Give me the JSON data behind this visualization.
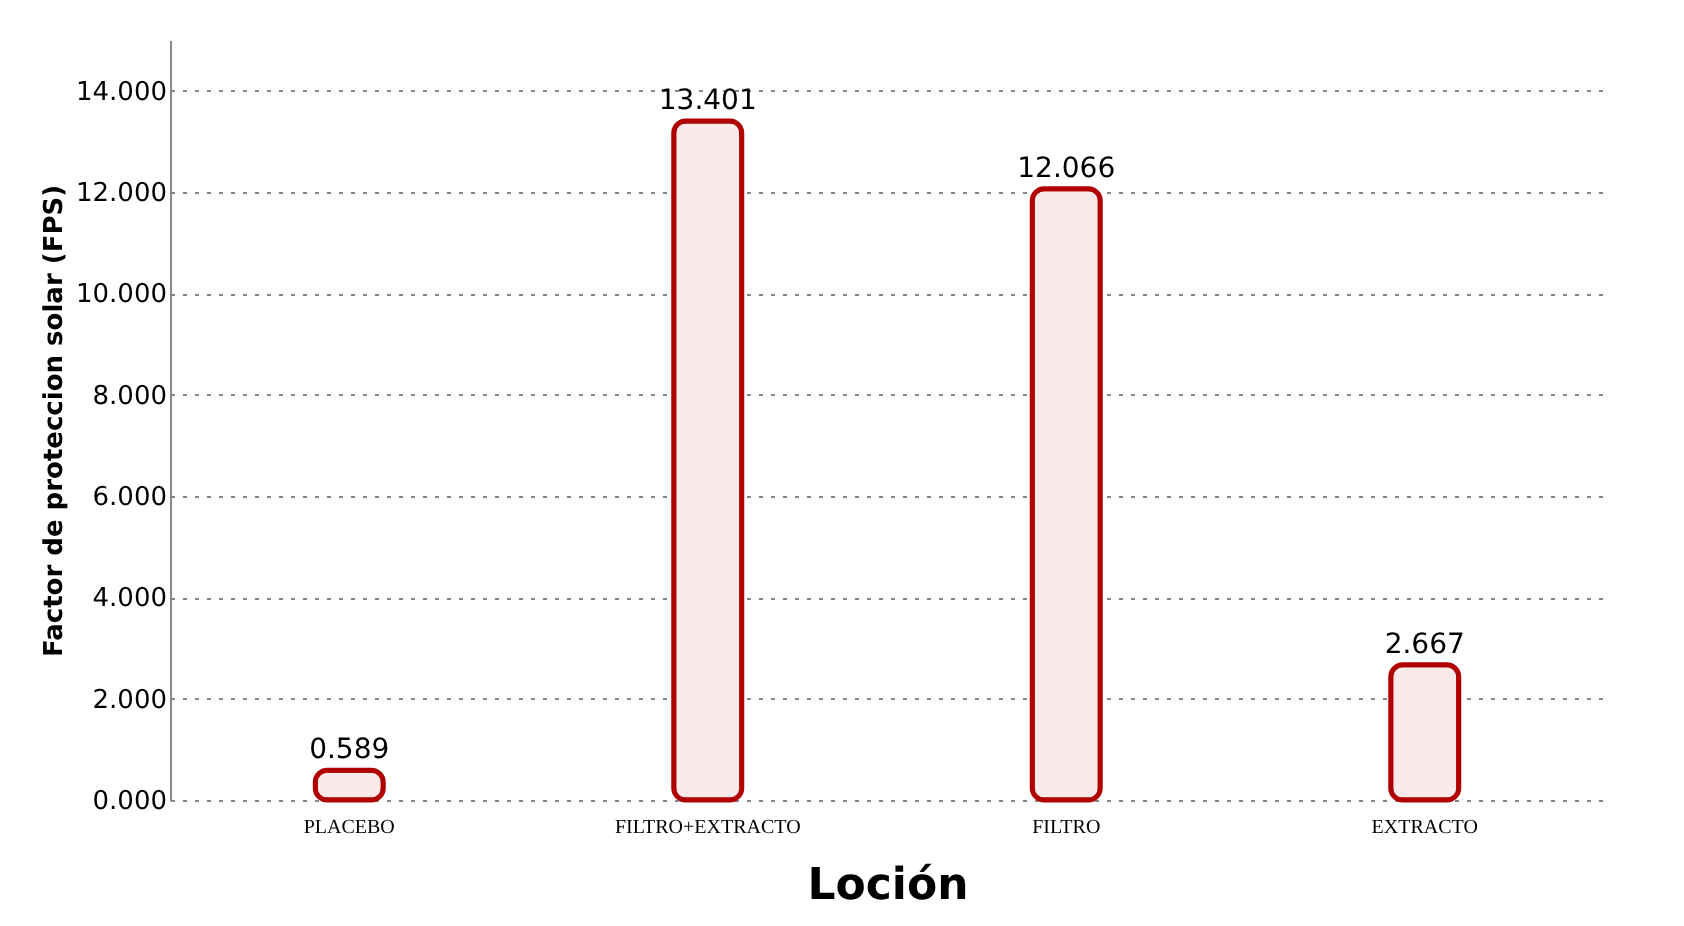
{
  "chart_data": {
    "type": "bar",
    "xlabel": "Loción",
    "ylabel": "Factor de proteccion solar (FPS)",
    "categories": [
      "PLACEBO",
      "FILTRO+EXTRACTO",
      "FILTRO",
      "EXTRACTO"
    ],
    "values": [
      0.589,
      13.401,
      12.066,
      2.667
    ],
    "color": "#fbeaea",
    "ylim": [
      0,
      15
    ],
    "yticks": [
      {
        "value": 0,
        "label": "0.000"
      },
      {
        "value": 2,
        "label": "2.000"
      },
      {
        "value": 4,
        "label": "4.000"
      },
      {
        "value": 6,
        "label": "6.000"
      },
      {
        "value": 8,
        "label": "8.000"
      },
      {
        "value": 10,
        "label": "10.000"
      },
      {
        "value": 12,
        "label": "12.000"
      },
      {
        "value": 14,
        "label": "14.000"
      }
    ],
    "grid": "y",
    "data_labels": true
  }
}
